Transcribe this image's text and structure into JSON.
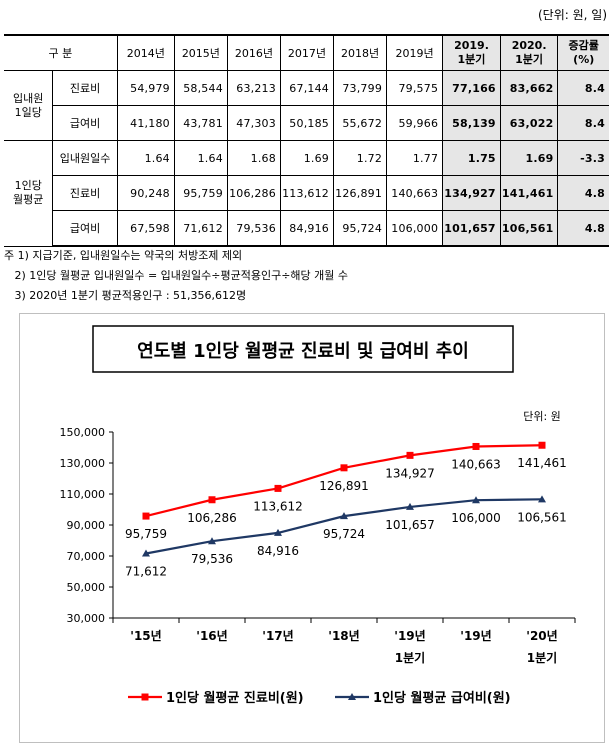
{
  "unit_note": "(단위: 원, 일)",
  "table": {
    "header": {
      "category": "구  분",
      "years": [
        "2014년",
        "2015년",
        "2016년",
        "2017년",
        "2018년",
        "2019년"
      ],
      "q1_2019": [
        "2019.",
        "1분기"
      ],
      "q1_2020": [
        "2020.",
        "1분기"
      ],
      "change": [
        "증감률",
        "(%)"
      ]
    },
    "groups": [
      {
        "label": [
          "입내원",
          "1일당"
        ],
        "rows": [
          {
            "name": "진료비",
            "values": [
              "54,979",
              "58,544",
              "63,213",
              "67,144",
              "73,799",
              "79,575"
            ],
            "q19": "77,166",
            "q20": "83,662",
            "change": "8.4"
          },
          {
            "name": "급여비",
            "values": [
              "41,180",
              "43,781",
              "47,303",
              "50,185",
              "55,672",
              "59,966"
            ],
            "q19": "58,139",
            "q20": "63,022",
            "change": "8.4"
          }
        ]
      },
      {
        "label": [
          "1인당",
          "월평균"
        ],
        "rows": [
          {
            "name": "입내원일수",
            "values": [
              "1.64",
              "1.64",
              "1.68",
              "1.69",
              "1.72",
              "1.77"
            ],
            "q19": "1.75",
            "q20": "1.69",
            "change": "-3.3"
          },
          {
            "name": "진료비",
            "values": [
              "90,248",
              "95,759",
              "106,286",
              "113,612",
              "126,891",
              "140,663"
            ],
            "q19": "134,927",
            "q20": "141,461",
            "change": "4.8"
          },
          {
            "name": "급여비",
            "values": [
              "67,598",
              "71,612",
              "79,536",
              "84,916",
              "95,724",
              "106,000"
            ],
            "q19": "101,657",
            "q20": "106,561",
            "change": "4.8"
          }
        ]
      }
    ]
  },
  "notes": [
    "주 1) 지급기준, 입내원일수는 약국의 처방조제 제외",
    "   2) 1인당 월평균 입내원일수 = 입내원일수÷평균적용인구÷해당 개월 수",
    "   3) 2020년 1분기 평균적용인구 : 51,356,612명"
  ],
  "colors": {
    "series1": "#ff0000",
    "series2": "#1f3864",
    "shade": "#e6e6e6"
  },
  "chart_data": {
    "type": "line",
    "title": "연도별 1인당 월평균 진료비 및 급여비 추이",
    "unit_label": "단위: 원",
    "categories": [
      [
        "'15년"
      ],
      [
        "'16년"
      ],
      [
        "'17년"
      ],
      [
        "'18년"
      ],
      [
        "'19년",
        "1분기"
      ],
      [
        "'19년"
      ],
      [
        "'20년",
        "1분기"
      ]
    ],
    "ylim": [
      30000,
      150000
    ],
    "yticks": [
      "30,000",
      "50,000",
      "70,000",
      "90,000",
      "110,000",
      "130,000",
      "150,000"
    ],
    "ytick_values": [
      30000,
      50000,
      70000,
      90000,
      110000,
      130000,
      150000
    ],
    "series": [
      {
        "name": "1인당 월평균 진료비(원)",
        "marker": "square",
        "values": [
          95759,
          106286,
          113612,
          126891,
          134927,
          140663,
          141461
        ],
        "labels": [
          "95,759",
          "106,286",
          "113,612",
          "126,891",
          "134,927",
          "140,663",
          "141,461"
        ]
      },
      {
        "name": "1인당 월평균 급여비(원)",
        "marker": "triangle",
        "values": [
          71612,
          79536,
          84916,
          95724,
          101657,
          106000,
          106561
        ],
        "labels": [
          "71,612",
          "79,536",
          "84,916",
          "95,724",
          "101,657",
          "106,000",
          "106,561"
        ]
      }
    ],
    "grid": false,
    "legend": "bottom"
  }
}
